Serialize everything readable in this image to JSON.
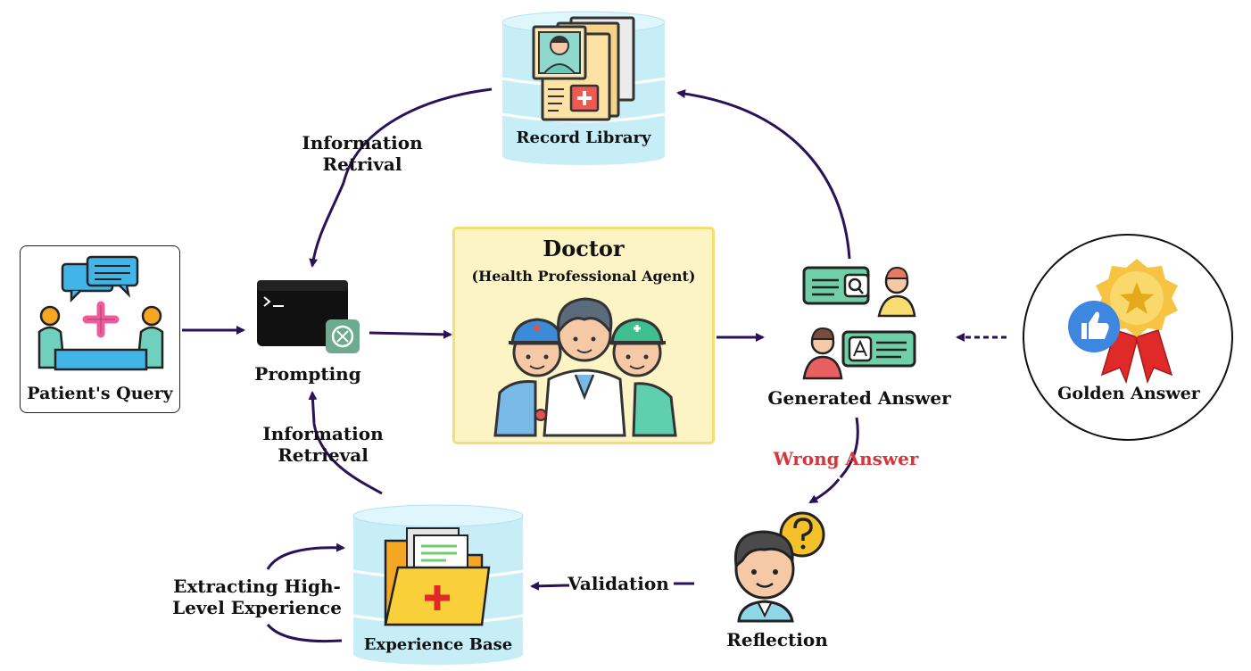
{
  "nodes": {
    "patient_query": "Patient's Query",
    "prompting": "Prompting",
    "doctor_title": "Doctor",
    "doctor_subtitle": "(Health Professional Agent)",
    "record_library": "Record Library",
    "generated_answer": "Generated Answer",
    "golden_answer": "Golden Answer",
    "reflection": "Reflection",
    "experience_base": "Experience Base"
  },
  "edges": {
    "info_retrival_line1": "Information",
    "info_retrival_line2": "Retrival",
    "info_retrieval_line1": "Information",
    "info_retrieval_line2": "Retrieval",
    "wrong_answer": "Wrong Answer",
    "validation": "Validation",
    "extracting_line1": "Extracting High-",
    "extracting_line2": "Level Experience"
  },
  "colors": {
    "arrow": "#2a1259",
    "wrong_answer": "#d6363b",
    "database": "#c7edf7",
    "doctor_panel": "#fdf4c6"
  },
  "icons": {
    "patient": "consultation-icon",
    "prompt": "terminal-chatgpt-icon",
    "doctor": "medical-team-icon",
    "record": "medical-records-icon",
    "answer": "qa-chat-icon",
    "golden": "award-thumbs-up-icon",
    "reflection": "thinking-person-icon",
    "experience": "medical-folder-icon"
  }
}
